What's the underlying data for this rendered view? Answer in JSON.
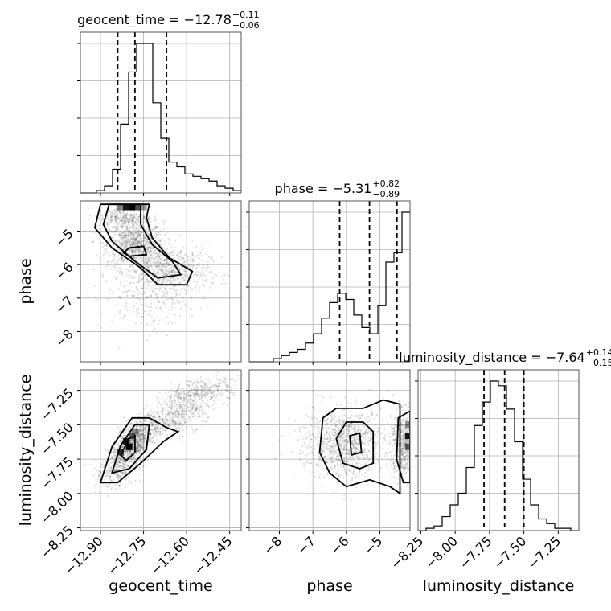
{
  "chart_data": {
    "type": "corner",
    "parameters": [
      "geocent_time",
      "phase",
      "luminosity_distance"
    ],
    "titles": [
      {
        "param": "geocent_time",
        "text": "geocent_time = −12.78",
        "plus": "+0.11",
        "minus": "−0.06"
      },
      {
        "param": "phase",
        "text": "phase = −5.31",
        "plus": "+0.82",
        "minus": "−0.89"
      },
      {
        "param": "luminosity_distance",
        "text": "luminosity_distance = −7.64",
        "plus": "+0.14",
        "minus": "−0.15"
      }
    ],
    "ranges": {
      "geocent_time": [
        -12.97,
        -12.41
      ],
      "phase": [
        -8.9,
        -4.1
      ],
      "luminosity_distance": [
        -8.27,
        -7.1
      ]
    },
    "ticks": {
      "geocent_time": [
        -12.9,
        -12.75,
        -12.6,
        -12.45
      ],
      "phase": [
        -8,
        -7,
        -6,
        -5
      ],
      "luminosity_distance": [
        -8.25,
        -8.0,
        -7.75,
        -7.5,
        -7.25
      ]
    },
    "tick_labels": {
      "geocent_time": [
        "−12.90",
        "−12.75",
        "−12.60",
        "−12.45"
      ],
      "phase": [
        "−8",
        "−7",
        "−6",
        "−5"
      ],
      "luminosity_distance": [
        "−8.25",
        "−8.00",
        "−7.75",
        "−7.50",
        "−7.25"
      ]
    },
    "quantiles": {
      "geocent_time": [
        -12.84,
        -12.78,
        -12.67
      ],
      "phase": [
        -6.2,
        -5.31,
        -4.49
      ],
      "luminosity_distance": [
        -7.79,
        -7.64,
        -7.5
      ]
    },
    "histograms": {
      "geocent_time": {
        "edges_start": -12.97,
        "bin_width": 0.028,
        "counts": [
          0,
          0,
          1,
          3,
          10,
          29,
          51,
          63,
          63,
          38,
          23,
          13,
          11,
          8,
          7,
          6,
          5,
          3,
          2,
          1
        ]
      },
      "phase": {
        "edges_start": -8.9,
        "bin_width": 0.24,
        "counts": [
          0,
          0,
          0,
          1,
          2,
          3,
          4,
          6,
          9,
          14,
          19,
          22,
          20,
          15,
          11,
          9,
          18,
          32,
          35,
          48
        ]
      },
      "luminosity_distance": {
        "edges_start": -8.27,
        "bin_width": 0.0585,
        "counts": [
          0,
          1,
          2,
          6,
          11,
          16,
          27,
          45,
          55,
          64,
          62,
          52,
          38,
          22,
          11,
          5,
          3,
          1,
          1,
          0
        ]
      }
    },
    "grid": true,
    "point_color": "#000000",
    "line_color": "#000000"
  }
}
